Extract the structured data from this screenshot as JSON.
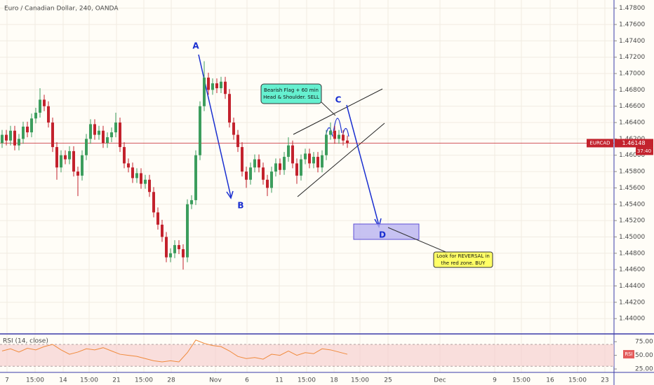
{
  "chart_data": {
    "type": "candlestick",
    "title": "Euro / Canadian Dollar, 240, OANDA",
    "up_color": "#3c9d5d",
    "down_color": "#c3222d",
    "grid": true,
    "ylim": [
      1.4383,
      1.479
    ],
    "yticks": [
      {
        "value": 1.478,
        "label": "1.47800"
      },
      {
        "value": 1.476,
        "label": "1.47600"
      },
      {
        "value": 1.474,
        "label": "1.47400"
      },
      {
        "value": 1.472,
        "label": "1.47200"
      },
      {
        "value": 1.47,
        "label": "1.47000"
      },
      {
        "value": 1.468,
        "label": "1.46800"
      },
      {
        "value": 1.466,
        "label": "1.46600"
      },
      {
        "value": 1.464,
        "label": "1.46400"
      },
      {
        "value": 1.462,
        "label": "1.46200"
      },
      {
        "value": 1.46,
        "label": "1.46000"
      },
      {
        "value": 1.458,
        "label": "1.45800"
      },
      {
        "value": 1.456,
        "label": "1.45600"
      },
      {
        "value": 1.454,
        "label": "1.45400"
      },
      {
        "value": 1.452,
        "label": "1.45200"
      },
      {
        "value": 1.45,
        "label": "1.45000"
      },
      {
        "value": 1.448,
        "label": "1.44800"
      },
      {
        "value": 1.446,
        "label": "1.44600"
      },
      {
        "value": 1.444,
        "label": "1.44400"
      },
      {
        "value": 1.442,
        "label": "1.44200"
      },
      {
        "value": 1.44,
        "label": "1.44000"
      }
    ],
    "x_labels": [
      "7",
      "15:00",
      "14",
      "15:00",
      "21",
      "15:00",
      "28",
      "Nov",
      "6",
      "11",
      "15:00",
      "18",
      "15:00",
      "25",
      "Dec",
      "9",
      "15:00",
      "16",
      "15:00",
      "23"
    ],
    "candles": [
      [
        1.4615,
        1.4631,
        1.4609,
        1.4625
      ],
      [
        1.4625,
        1.4631,
        1.4612,
        1.4618
      ],
      [
        1.4618,
        1.4636,
        1.4612,
        1.463
      ],
      [
        1.463,
        1.4636,
        1.4606,
        1.4612
      ],
      [
        1.4612,
        1.4626,
        1.4606,
        1.462
      ],
      [
        1.462,
        1.4641,
        1.4614,
        1.4635
      ],
      [
        1.4635,
        1.4641,
        1.4622,
        1.4628
      ],
      [
        1.4628,
        1.4651,
        1.4622,
        1.4645
      ],
      [
        1.4645,
        1.4658,
        1.4639,
        1.4652
      ],
      [
        1.4652,
        1.4682,
        1.4646,
        1.4668
      ],
      [
        1.4668,
        1.4674,
        1.4654,
        1.466
      ],
      [
        1.466,
        1.4666,
        1.4634,
        1.464
      ],
      [
        1.464,
        1.4646,
        1.4604,
        1.461
      ],
      [
        1.461,
        1.4616,
        1.457,
        1.4585
      ],
      [
        1.4585,
        1.4606,
        1.4579,
        1.46
      ],
      [
        1.46,
        1.4606,
        1.4589,
        1.4595
      ],
      [
        1.4595,
        1.4611,
        1.4589,
        1.4605
      ],
      [
        1.4605,
        1.4611,
        1.4574,
        1.458
      ],
      [
        1.458,
        1.4586,
        1.455,
        1.4575
      ],
      [
        1.4575,
        1.4606,
        1.4569,
        1.46
      ],
      [
        1.46,
        1.4626,
        1.4594,
        1.462
      ],
      [
        1.462,
        1.4644,
        1.4614,
        1.4638
      ],
      [
        1.4638,
        1.4644,
        1.4619,
        1.4625
      ],
      [
        1.4625,
        1.4636,
        1.4619,
        1.463
      ],
      [
        1.463,
        1.4636,
        1.4609,
        1.4615
      ],
      [
        1.4615,
        1.4628,
        1.4609,
        1.4622
      ],
      [
        1.4622,
        1.4634,
        1.4616,
        1.4628
      ],
      [
        1.4628,
        1.4652,
        1.4622,
        1.464
      ],
      [
        1.464,
        1.4646,
        1.4604,
        1.461
      ],
      [
        1.461,
        1.4616,
        1.4584,
        1.459
      ],
      [
        1.459,
        1.4596,
        1.4579,
        1.4585
      ],
      [
        1.4585,
        1.4591,
        1.4566,
        1.4572
      ],
      [
        1.4572,
        1.4584,
        1.4566,
        1.4578
      ],
      [
        1.4578,
        1.4584,
        1.4559,
        1.4565
      ],
      [
        1.4565,
        1.4576,
        1.4559,
        1.457
      ],
      [
        1.457,
        1.4576,
        1.4549,
        1.4555
      ],
      [
        1.4555,
        1.4561,
        1.4524,
        1.453
      ],
      [
        1.453,
        1.4536,
        1.4509,
        1.4515
      ],
      [
        1.4515,
        1.4521,
        1.4494,
        1.45
      ],
      [
        1.45,
        1.4506,
        1.4469,
        1.4475
      ],
      [
        1.4475,
        1.4486,
        1.4469,
        1.448
      ],
      [
        1.448,
        1.4496,
        1.4474,
        1.449
      ],
      [
        1.449,
        1.4496,
        1.4479,
        1.4485
      ],
      [
        1.4485,
        1.4491,
        1.446,
        1.4475
      ],
      [
        1.4475,
        1.4546,
        1.4469,
        1.454
      ],
      [
        1.454,
        1.4551,
        1.4534,
        1.4545
      ],
      [
        1.4545,
        1.4606,
        1.4539,
        1.46
      ],
      [
        1.46,
        1.4666,
        1.4594,
        1.466
      ],
      [
        1.466,
        1.4715,
        1.4654,
        1.4695
      ],
      [
        1.4695,
        1.4701,
        1.4674,
        1.468
      ],
      [
        1.468,
        1.4694,
        1.4674,
        1.4688
      ],
      [
        1.4688,
        1.4694,
        1.4676,
        1.4682
      ],
      [
        1.4682,
        1.4696,
        1.4676,
        1.469
      ],
      [
        1.469,
        1.4696,
        1.4669,
        1.4675
      ],
      [
        1.4675,
        1.4681,
        1.4634,
        1.464
      ],
      [
        1.464,
        1.4646,
        1.4619,
        1.4625
      ],
      [
        1.4625,
        1.4631,
        1.4604,
        1.461
      ],
      [
        1.461,
        1.4616,
        1.4574,
        1.458
      ],
      [
        1.458,
        1.4586,
        1.456,
        1.457
      ],
      [
        1.457,
        1.4591,
        1.4564,
        1.4585
      ],
      [
        1.4585,
        1.4601,
        1.4579,
        1.4595
      ],
      [
        1.4595,
        1.4601,
        1.4579,
        1.4585
      ],
      [
        1.4585,
        1.4591,
        1.4564,
        1.457
      ],
      [
        1.457,
        1.4576,
        1.455,
        1.456
      ],
      [
        1.456,
        1.4586,
        1.4554,
        1.458
      ],
      [
        1.458,
        1.4596,
        1.4574,
        1.459
      ],
      [
        1.459,
        1.4596,
        1.4576,
        1.4582
      ],
      [
        1.4582,
        1.4604,
        1.4576,
        1.4598
      ],
      [
        1.4598,
        1.4622,
        1.4592,
        1.4612
      ],
      [
        1.4612,
        1.4618,
        1.4584,
        1.459
      ],
      [
        1.459,
        1.4596,
        1.4565,
        1.4575
      ],
      [
        1.4575,
        1.4601,
        1.4569,
        1.4595
      ],
      [
        1.4595,
        1.4608,
        1.4589,
        1.4602
      ],
      [
        1.4602,
        1.4608,
        1.4584,
        1.459
      ],
      [
        1.459,
        1.4604,
        1.4584,
        1.4598
      ],
      [
        1.4598,
        1.4604,
        1.4579,
        1.4585
      ],
      [
        1.4585,
        1.4606,
        1.4579,
        1.46
      ],
      [
        1.46,
        1.4631,
        1.4594,
        1.4625
      ],
      [
        1.4625,
        1.464,
        1.4619,
        1.463
      ],
      [
        1.463,
        1.4636,
        1.4614,
        1.462
      ],
      [
        1.462,
        1.4631,
        1.4614,
        1.4625
      ],
      [
        1.4625,
        1.4631,
        1.4612,
        1.4618
      ],
      [
        1.4618,
        1.4624,
        1.4609,
        1.4615
      ]
    ],
    "symbol_tag": "EURCAD",
    "last_price": {
      "value": 1.46148,
      "label": "1.46148"
    },
    "countdown": "37:40",
    "annotations": {
      "A": "A",
      "B": "B",
      "C": "C",
      "D": "D",
      "sell_note": [
        "Bearish Flag + 60 min",
        "Head & Shoulder. SELL"
      ],
      "buy_note": [
        "Look for REVERSAL in",
        "the red zone. BUY"
      ]
    },
    "rsi": {
      "title": "RSI (14, close)",
      "tag": "RSI",
      "color": "#f08a3c",
      "ylim": [
        20,
        88
      ],
      "yticks": [
        {
          "value": 75,
          "label": "75.00"
        },
        {
          "value": 50,
          "label": "50.00"
        },
        {
          "value": 25,
          "label": "25.00"
        }
      ],
      "band": [
        30,
        70
      ],
      "values": [
        58,
        62,
        56,
        63,
        60,
        66,
        70,
        60,
        52,
        56,
        62,
        60,
        64,
        58,
        52,
        50,
        48,
        44,
        40,
        38,
        40,
        38,
        55,
        78,
        72,
        68,
        66,
        58,
        48,
        44,
        46,
        43,
        52,
        50,
        58,
        50,
        55,
        53,
        62,
        60,
        56,
        52
      ]
    }
  }
}
